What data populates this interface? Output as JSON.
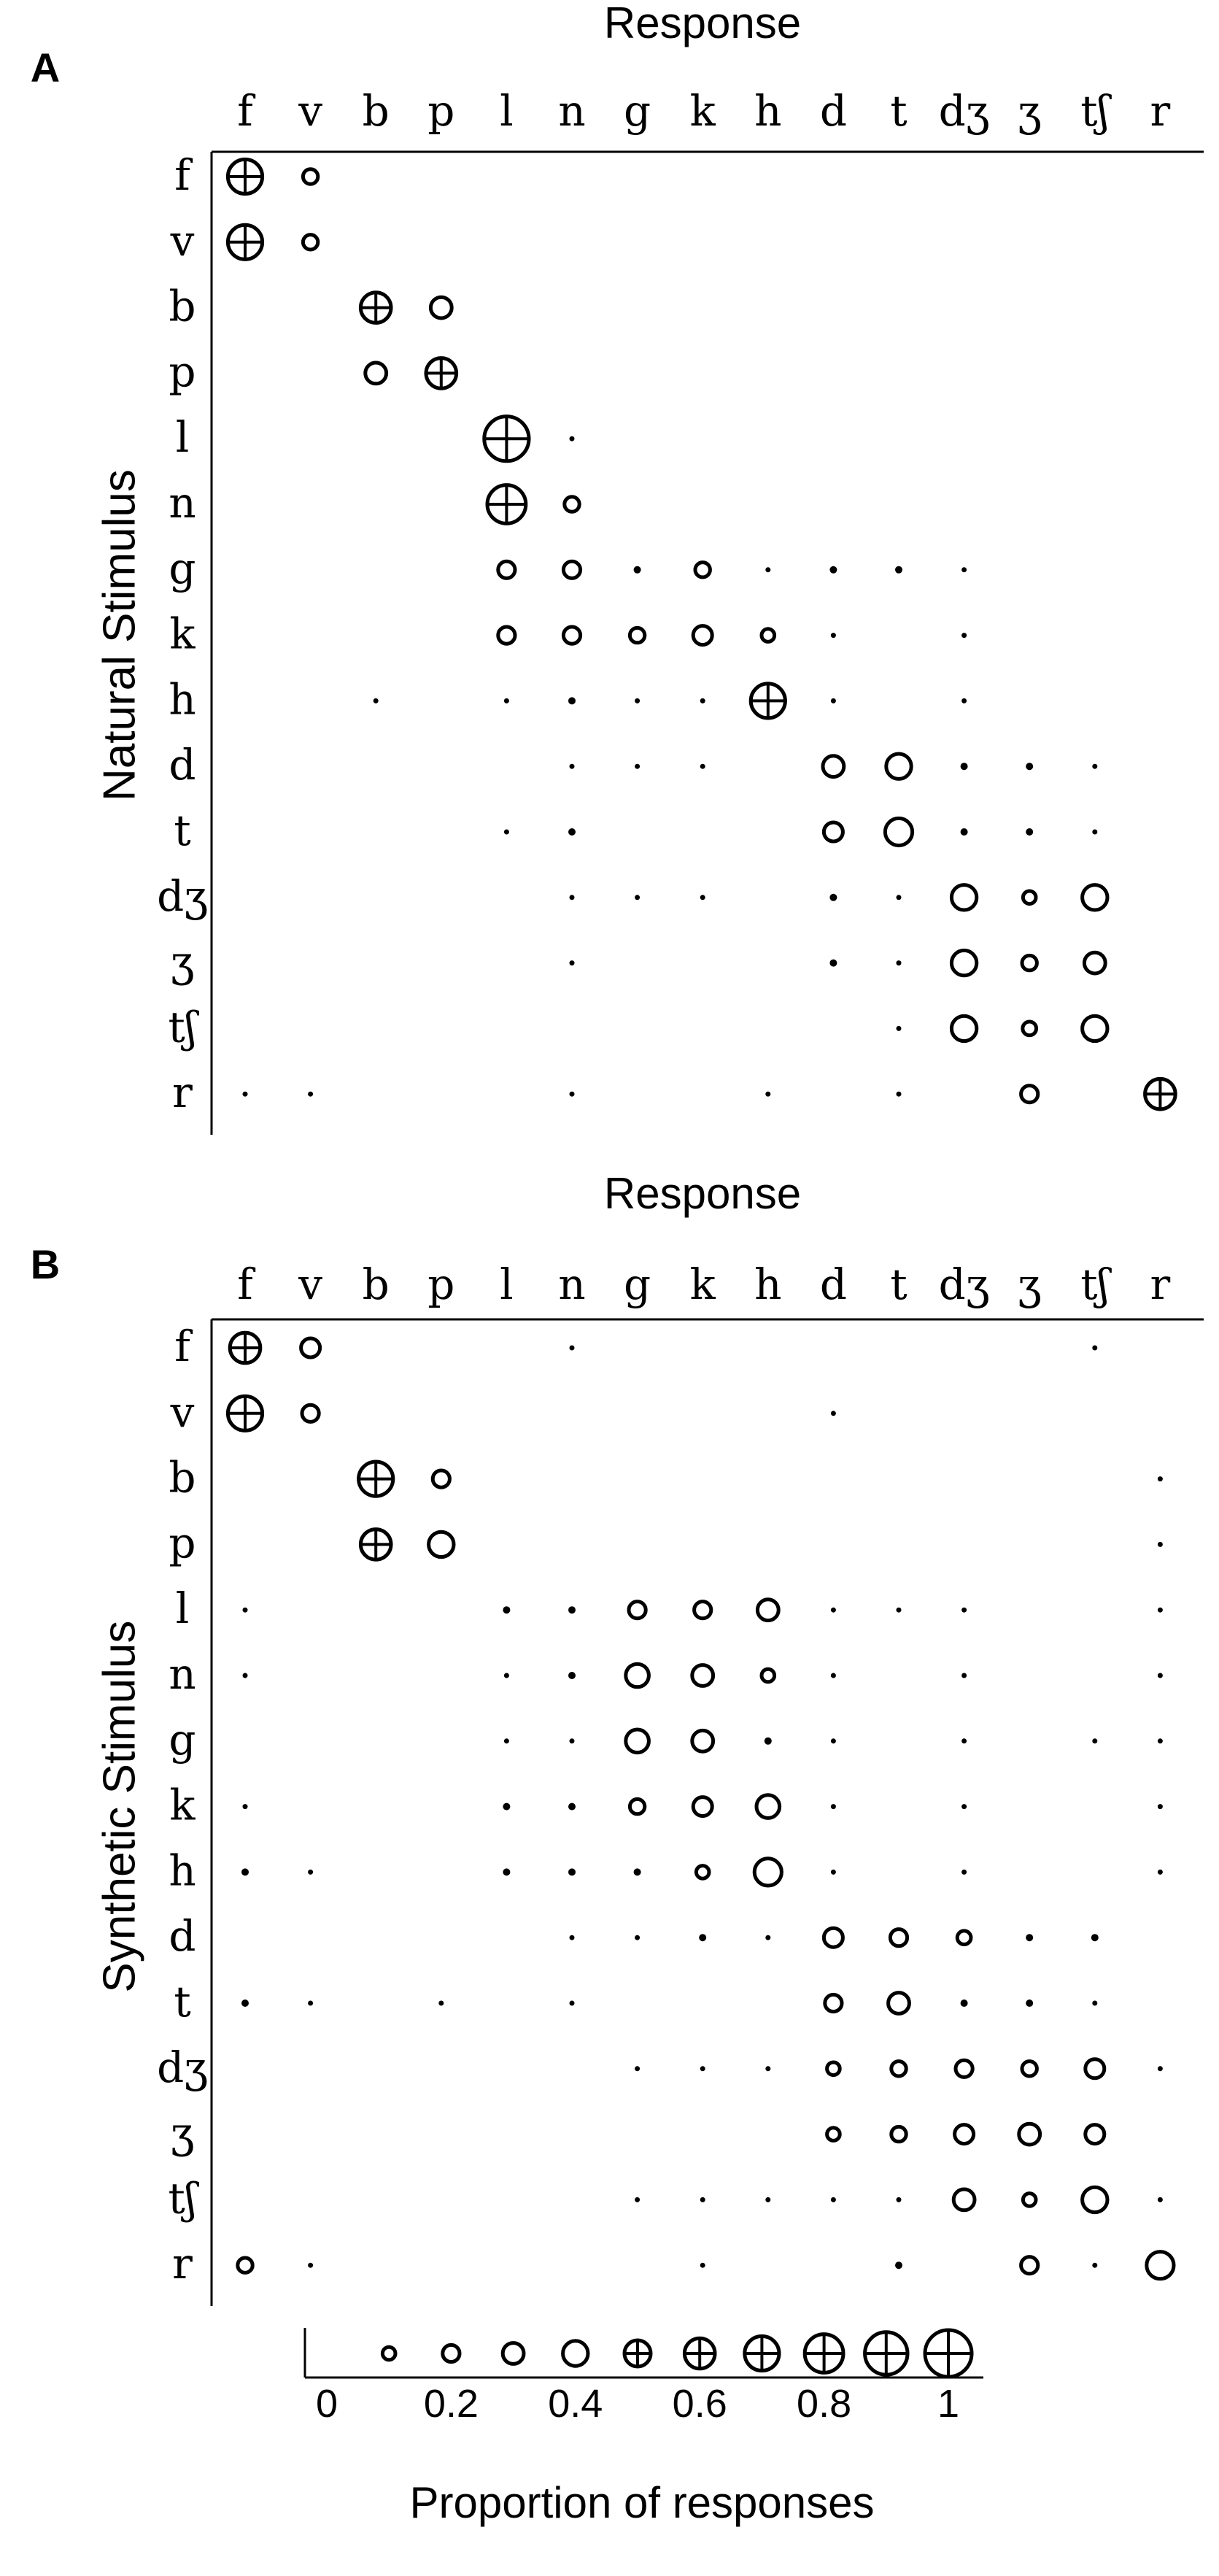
{
  "chart_data": [
    {
      "type": "confusion-bubble-matrix",
      "panel": "A",
      "xlabel": "Response",
      "ylabel": "Natural Stimulus",
      "responses": [
        "f",
        "v",
        "b",
        "p",
        "l",
        "n",
        "g",
        "k",
        "h",
        "d",
        "t",
        "dʒ",
        "ʒ",
        "tʃ",
        "r"
      ],
      "stimuli": [
        "f",
        "v",
        "b",
        "p",
        "l",
        "n",
        "g",
        "k",
        "h",
        "d",
        "t",
        "dʒ",
        "ʒ",
        "tʃ",
        "r"
      ],
      "matrix": [
        [
          0.7,
          0.15,
          0,
          0,
          0,
          0,
          0,
          0,
          0,
          0,
          0,
          0,
          0,
          0,
          0
        ],
        [
          0.7,
          0.15,
          0,
          0,
          0,
          0,
          0,
          0,
          0,
          0,
          0,
          0,
          0,
          0,
          0
        ],
        [
          0,
          0,
          0.6,
          0.3,
          0,
          0,
          0,
          0,
          0,
          0,
          0,
          0,
          0,
          0,
          0
        ],
        [
          0,
          0,
          0.3,
          0.6,
          0,
          0,
          0,
          0,
          0,
          0,
          0,
          0,
          0,
          0,
          0
        ],
        [
          0,
          0,
          0,
          0,
          0.95,
          0.02,
          0,
          0,
          0,
          0,
          0,
          0,
          0,
          0,
          0
        ],
        [
          0,
          0,
          0,
          0,
          0.8,
          0.15,
          0,
          0,
          0,
          0,
          0,
          0,
          0,
          0,
          0
        ],
        [
          0,
          0,
          0,
          0,
          0.2,
          0.2,
          0.08,
          0.15,
          0.04,
          0.08,
          0.06,
          0.04,
          0,
          0,
          0
        ],
        [
          0,
          0,
          0,
          0,
          0.2,
          0.2,
          0.15,
          0.25,
          0.1,
          0.04,
          0,
          0.04,
          0,
          0,
          0
        ],
        [
          0,
          0,
          0.02,
          0,
          0.04,
          0.08,
          0.04,
          0.04,
          0.7,
          0.04,
          0,
          0.04,
          0,
          0,
          0
        ],
        [
          0,
          0,
          0,
          0,
          0,
          0.04,
          0.04,
          0.04,
          0,
          0.3,
          0.4,
          0.08,
          0.08,
          0.04,
          0
        ],
        [
          0,
          0,
          0,
          0,
          0.04,
          0.06,
          0,
          0,
          0,
          0.25,
          0.45,
          0.08,
          0.08,
          0.04,
          0
        ],
        [
          0,
          0,
          0,
          0,
          0,
          0.04,
          0.04,
          0.04,
          0,
          0.08,
          0.04,
          0.4,
          0.1,
          0.4,
          0
        ],
        [
          0,
          0,
          0,
          0,
          0,
          0.04,
          0,
          0,
          0,
          0.06,
          0.04,
          0.4,
          0.15,
          0.3,
          0
        ],
        [
          0,
          0,
          0,
          0,
          0,
          0,
          0,
          0,
          0,
          0,
          0.04,
          0.4,
          0.12,
          0.4,
          0
        ],
        [
          0.04,
          0.04,
          0,
          0,
          0,
          0.04,
          0,
          0,
          0.04,
          0,
          0.04,
          0,
          0.2,
          0,
          0.6
        ]
      ]
    },
    {
      "type": "confusion-bubble-matrix",
      "panel": "B",
      "xlabel": "Response",
      "ylabel": "Synthetic Stimulus",
      "responses": [
        "f",
        "v",
        "b",
        "p",
        "l",
        "n",
        "g",
        "k",
        "h",
        "d",
        "t",
        "dʒ",
        "ʒ",
        "tʃ",
        "r"
      ],
      "stimuli": [
        "f",
        "v",
        "b",
        "p",
        "l",
        "n",
        "g",
        "k",
        "h",
        "d",
        "t",
        "dʒ",
        "ʒ",
        "tʃ",
        "r"
      ],
      "matrix": [
        [
          0.6,
          0.25,
          0,
          0,
          0,
          0.02,
          0,
          0,
          0,
          0,
          0,
          0,
          0,
          0.04,
          0
        ],
        [
          0.7,
          0.2,
          0,
          0,
          0,
          0,
          0,
          0,
          0,
          0.03,
          0,
          0,
          0,
          0,
          0
        ],
        [
          0,
          0,
          0.7,
          0.2,
          0,
          0,
          0,
          0,
          0,
          0,
          0,
          0,
          0,
          0,
          0.03
        ],
        [
          0,
          0,
          0.6,
          0.4,
          0,
          0,
          0,
          0,
          0,
          0,
          0,
          0,
          0,
          0,
          0.03
        ],
        [
          0.04,
          0,
          0,
          0,
          0.06,
          0.06,
          0.2,
          0.2,
          0.3,
          0.04,
          0.04,
          0.04,
          0,
          0,
          0.04
        ],
        [
          0.02,
          0,
          0,
          0,
          0.04,
          0.06,
          0.35,
          0.3,
          0.1,
          0.03,
          0,
          0.04,
          0,
          0,
          0.03
        ],
        [
          0,
          0,
          0,
          0,
          0.04,
          0.04,
          0.35,
          0.3,
          0.08,
          0.04,
          0,
          0.04,
          0,
          0.04,
          0.04
        ],
        [
          0.04,
          0,
          0,
          0,
          0.06,
          0.06,
          0.15,
          0.25,
          0.35,
          0.04,
          0,
          0.04,
          0,
          0,
          0.04
        ],
        [
          0.06,
          0.04,
          0,
          0,
          0.06,
          0.08,
          0.06,
          0.1,
          0.45,
          0.04,
          0,
          0.04,
          0,
          0,
          0.04
        ],
        [
          0,
          0,
          0,
          0,
          0,
          0.04,
          0.04,
          0.06,
          0.04,
          0.25,
          0.2,
          0.12,
          0.08,
          0.08,
          0
        ],
        [
          0.06,
          0.04,
          0,
          0.04,
          0,
          0.04,
          0,
          0,
          0,
          0.2,
          0.3,
          0.08,
          0.08,
          0.04,
          0
        ],
        [
          0,
          0,
          0,
          0,
          0,
          0,
          0.04,
          0.04,
          0.04,
          0.1,
          0.15,
          0.2,
          0.15,
          0.25,
          0.04
        ],
        [
          0,
          0,
          0,
          0,
          0,
          0,
          0,
          0,
          0,
          0.1,
          0.15,
          0.25,
          0.3,
          0.25,
          0
        ],
        [
          0,
          0,
          0,
          0,
          0,
          0,
          0.04,
          0.04,
          0.04,
          0.04,
          0.04,
          0.3,
          0.1,
          0.4,
          0.04
        ],
        [
          0.15,
          0.04,
          0,
          0,
          0,
          0,
          0,
          0.04,
          0,
          0,
          0.08,
          0,
          0.2,
          0.02,
          0.45
        ]
      ]
    }
  ],
  "legend": {
    "title": "Proportion of responses",
    "ticks": [
      "0",
      "0.2",
      "0.4",
      "0.6",
      "0.8",
      "1"
    ],
    "tick_values": [
      0,
      0.2,
      0.4,
      0.6,
      0.8,
      1
    ],
    "symbol_values": [
      0.1,
      0.2,
      0.3,
      0.4,
      0.5,
      0.6,
      0.7,
      0.8,
      0.9,
      1.0
    ]
  }
}
